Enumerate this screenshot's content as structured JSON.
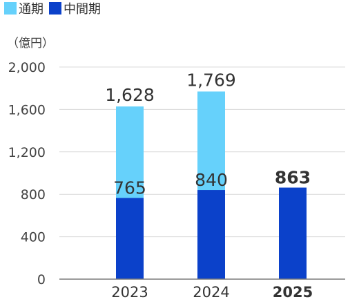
{
  "chart_data": {
    "type": "bar",
    "stacking": "overlay",
    "categories": [
      "2023",
      "2024",
      "2025"
    ],
    "highlight_category": "2025",
    "series": [
      {
        "name": "通期",
        "color": "#66d1fb",
        "values": [
          1628,
          1769,
          null
        ],
        "labels": [
          "1,628",
          "1,769",
          ""
        ]
      },
      {
        "name": "中間期",
        "color": "#0b41ca",
        "values": [
          765,
          840,
          863
        ],
        "labels": [
          "765",
          "840",
          "863"
        ]
      }
    ],
    "unit_label": "（億円）",
    "ylim": [
      0,
      2000
    ],
    "yticks": [
      0,
      400,
      800,
      1200,
      1600,
      2000
    ],
    "ytick_labels": [
      "0",
      "400",
      "800",
      "1,200",
      "1,600",
      "2,000"
    ],
    "grid": true,
    "legend_position": "top-left"
  }
}
